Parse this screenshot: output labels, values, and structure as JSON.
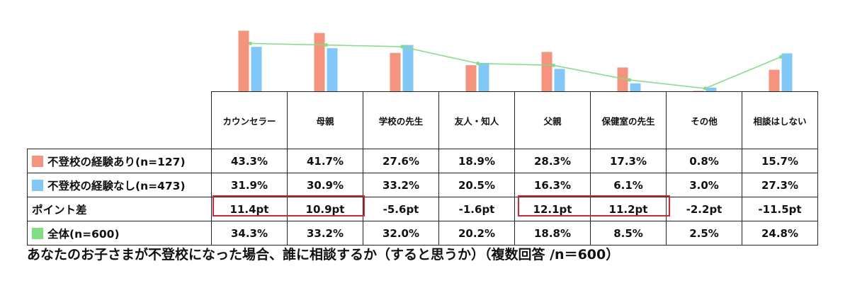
{
  "chart_data": {
    "type": "bar",
    "title": "あなたのお子さまが不登校になった場合、誰に相談するか（すると思うか）（複数回答 /n＝600）",
    "categories": [
      "カウンセラー",
      "母親",
      "学校の先生",
      "友人・知人",
      "父親",
      "保健室の先生",
      "その他",
      "相談はしない"
    ],
    "series": [
      {
        "name": "不登校の経験あり(n=127)",
        "color": "#f5937c",
        "values": [
          43.3,
          41.7,
          27.6,
          18.9,
          28.3,
          17.3,
          0.8,
          15.7
        ],
        "labels": [
          "43.3%",
          "41.7%",
          "27.6%",
          "18.9%",
          "28.3%",
          "17.3%",
          "0.8%",
          "15.7%"
        ]
      },
      {
        "name": "不登校の経験なし(n=473)",
        "color": "#7fc8f8",
        "values": [
          31.9,
          30.9,
          33.2,
          20.5,
          16.3,
          6.1,
          3.0,
          27.3
        ],
        "labels": [
          "31.9%",
          "30.9%",
          "33.2%",
          "20.5%",
          "16.3%",
          "6.1%",
          "3.0%",
          "27.3%"
        ]
      },
      {
        "name": "全体(n=600)",
        "color": "#7ee07e",
        "type": "line",
        "values": [
          34.3,
          33.2,
          32.0,
          20.2,
          18.8,
          8.5,
          2.5,
          24.8
        ],
        "labels": [
          "34.3%",
          "33.2%",
          "32.0%",
          "20.2%",
          "18.8%",
          "8.5%",
          "2.5%",
          "24.8%"
        ]
      }
    ],
    "point_diff": {
      "name": "ポイント差",
      "values": [
        11.4,
        10.9,
        -5.6,
        -1.6,
        12.1,
        11.2,
        -2.2,
        -11.5
      ],
      "labels": [
        "11.4pt",
        "10.9pt",
        "-5.6pt",
        "-1.6pt",
        "12.1pt",
        "11.2pt",
        "-2.2pt",
        "-11.5pt"
      ],
      "highlighted": [
        true,
        true,
        false,
        false,
        true,
        true,
        false,
        false
      ]
    },
    "ylim": [
      0,
      45
    ],
    "highlight_color": "#d7262e"
  }
}
